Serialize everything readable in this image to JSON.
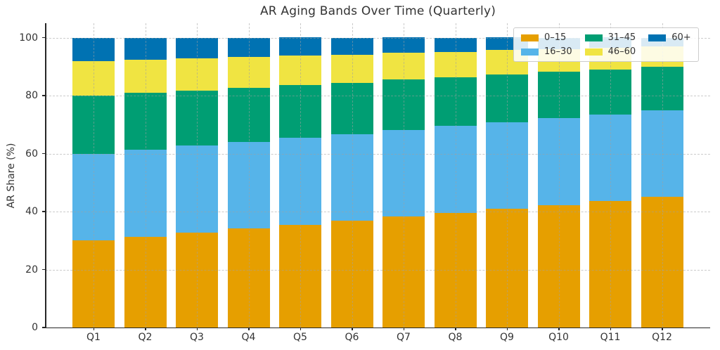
{
  "chart_data": {
    "type": "bar",
    "stacked": true,
    "title": "AR Aging Bands Over Time (Quarterly)",
    "ylabel": "AR Share (%)",
    "categories": [
      "Q1",
      "Q2",
      "Q3",
      "Q4",
      "Q5",
      "Q6",
      "Q7",
      "Q8",
      "Q9",
      "Q10",
      "Q11",
      "Q12"
    ],
    "series": [
      {
        "name": "0–15",
        "color": "#E69F00",
        "values": [
          30.0,
          31.4,
          32.7,
          34.1,
          35.5,
          36.8,
          38.2,
          39.5,
          40.9,
          42.3,
          43.6,
          45.0
        ]
      },
      {
        "name": "16–30",
        "color": "#56B4E9",
        "values": [
          30.0,
          30.0,
          30.0,
          30.0,
          30.0,
          30.0,
          30.0,
          30.0,
          30.0,
          30.0,
          30.0,
          30.0
        ]
      },
      {
        "name": "31–45",
        "color": "#009E73",
        "values": [
          20.0,
          19.5,
          19.1,
          18.6,
          18.2,
          17.7,
          17.3,
          16.8,
          16.4,
          15.9,
          15.5,
          15.0
        ]
      },
      {
        "name": "46–60",
        "color": "#F0E442",
        "values": [
          12.0,
          11.5,
          11.1,
          10.6,
          10.2,
          9.7,
          9.3,
          8.8,
          8.4,
          7.9,
          7.5,
          7.0
        ]
      },
      {
        "name": "60+",
        "color": "#0072B2",
        "values": [
          8.0,
          7.5,
          7.1,
          6.6,
          6.2,
          5.7,
          5.3,
          4.8,
          4.4,
          3.9,
          3.5,
          3.0
        ]
      }
    ],
    "yticks": [
      0,
      20,
      40,
      60,
      80,
      100
    ],
    "ylim": [
      0,
      105
    ],
    "grid": true,
    "grid_style": "dashed",
    "legend_position": "upper-right",
    "legend_ncol": 3,
    "style": {
      "background": "#ffffff",
      "text_color": "#333333",
      "spine_color": "#262626",
      "grid_color": "#a0a0a0",
      "legend_border": "#cccccc"
    }
  }
}
